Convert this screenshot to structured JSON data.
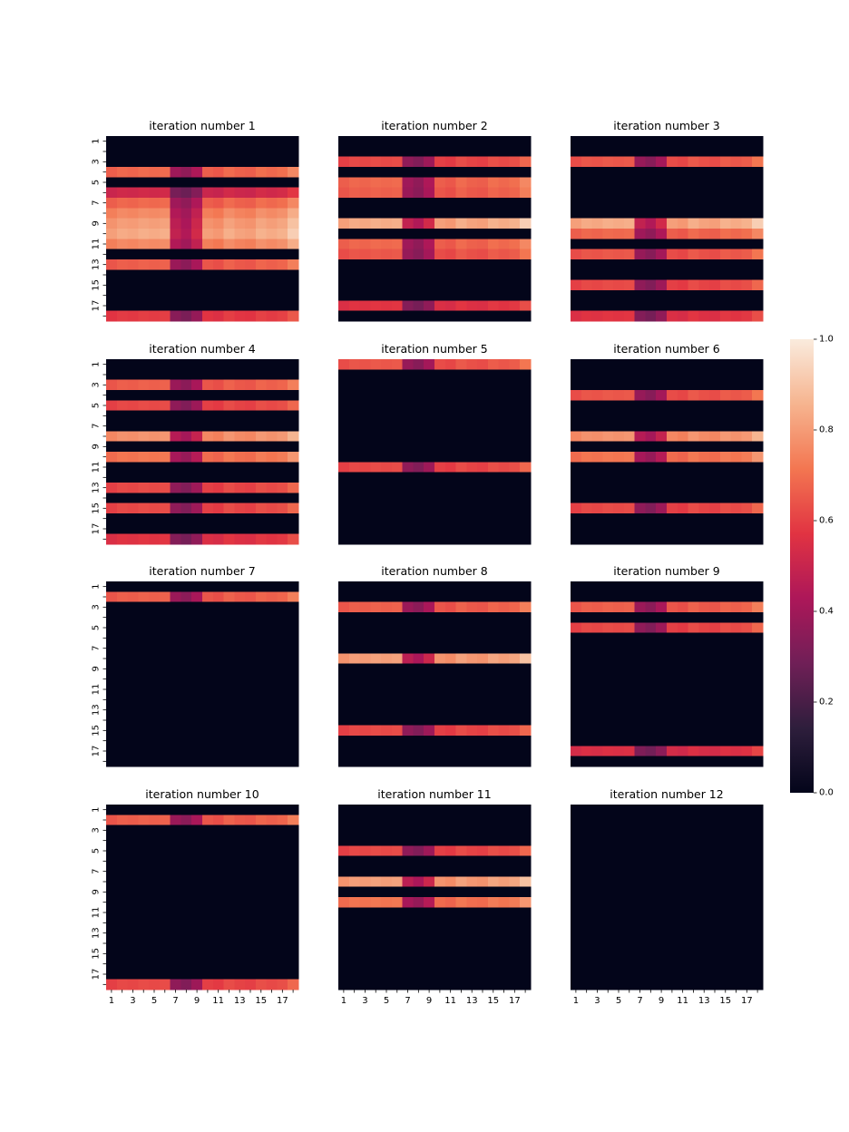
{
  "chart_data": {
    "type": "heatmap",
    "rows": 18,
    "cols": 18,
    "tick_labels": [
      "1",
      "3",
      "5",
      "7",
      "9",
      "11",
      "13",
      "15",
      "17"
    ],
    "colorbar": {
      "min": 0.0,
      "max": 1.0,
      "ticks": [
        "0.0",
        "0.2",
        "0.4",
        "0.6",
        "0.8",
        "1.0"
      ],
      "colormap": "rocket",
      "stops": [
        "#03051a",
        "#2e1e3c",
        "#701f57",
        "#ad1759",
        "#e13342",
        "#f37651",
        "#f6b48f",
        "#faebdd"
      ]
    },
    "column_profile": [
      0.92,
      0.95,
      0.94,
      0.96,
      0.95,
      0.96,
      0.55,
      0.5,
      0.6,
      0.92,
      0.9,
      0.96,
      0.93,
      0.92,
      0.97,
      0.95,
      0.97,
      1.05
    ],
    "panels": [
      {
        "title": "iteration number 1",
        "row_levels": [
          0,
          0,
          0,
          0.72,
          0,
          0.55,
          0.72,
          0.8,
          0.85,
          0.88,
          0.8,
          0,
          0.7,
          0,
          0,
          0,
          0,
          0.62
        ]
      },
      {
        "title": "iteration number 2",
        "row_levels": [
          0,
          0,
          0.65,
          0,
          0.72,
          0.7,
          0,
          0,
          0.88,
          0,
          0.72,
          0.68,
          0,
          0,
          0,
          0,
          0.6,
          0
        ]
      },
      {
        "title": "iteration number 3",
        "row_levels": [
          0,
          0,
          0.68,
          0,
          0,
          0,
          0,
          0,
          0.88,
          0.72,
          0,
          0.68,
          0,
          0,
          0.65,
          0,
          0,
          0.6
        ]
      },
      {
        "title": "iteration number 4",
        "row_levels": [
          0,
          0,
          0.7,
          0,
          0.65,
          0,
          0,
          0.82,
          0,
          0.75,
          0,
          0,
          0.65,
          0,
          0.65,
          0,
          0,
          0.6
        ]
      },
      {
        "title": "iteration number 5",
        "row_levels": [
          0.68,
          0,
          0,
          0,
          0,
          0,
          0,
          0,
          0,
          0,
          0.65,
          0,
          0,
          0,
          0,
          0,
          0,
          0
        ]
      },
      {
        "title": "iteration number 6",
        "row_levels": [
          0,
          0,
          0,
          0.68,
          0,
          0,
          0,
          0.82,
          0,
          0.75,
          0,
          0,
          0,
          0,
          0.65,
          0,
          0,
          0
        ]
      },
      {
        "title": "iteration number 7",
        "row_levels": [
          0,
          0.7,
          0,
          0,
          0,
          0,
          0,
          0,
          0,
          0,
          0,
          0,
          0,
          0,
          0,
          0,
          0,
          0
        ]
      },
      {
        "title": "iteration number 8",
        "row_levels": [
          0,
          0,
          0.7,
          0,
          0,
          0,
          0,
          0.85,
          0,
          0,
          0,
          0,
          0,
          0,
          0.65,
          0,
          0,
          0
        ]
      },
      {
        "title": "iteration number 9",
        "row_levels": [
          0,
          0,
          0.7,
          0,
          0.65,
          0,
          0,
          0,
          0,
          0,
          0,
          0,
          0,
          0,
          0,
          0,
          0.58,
          0
        ]
      },
      {
        "title": "iteration number 10",
        "row_levels": [
          0,
          0.7,
          0,
          0,
          0,
          0,
          0,
          0,
          0,
          0,
          0,
          0,
          0,
          0,
          0,
          0,
          0,
          0.65
        ]
      },
      {
        "title": "iteration number 11",
        "row_levels": [
          0,
          0,
          0,
          0,
          0.65,
          0,
          0,
          0.85,
          0,
          0.75,
          0,
          0,
          0,
          0,
          0,
          0,
          0,
          0
        ]
      },
      {
        "title": "iteration number 12",
        "row_levels": [
          0,
          0,
          0,
          0,
          0,
          0,
          0,
          0,
          0,
          0,
          0,
          0,
          0,
          0,
          0,
          0,
          0,
          0
        ]
      }
    ]
  }
}
